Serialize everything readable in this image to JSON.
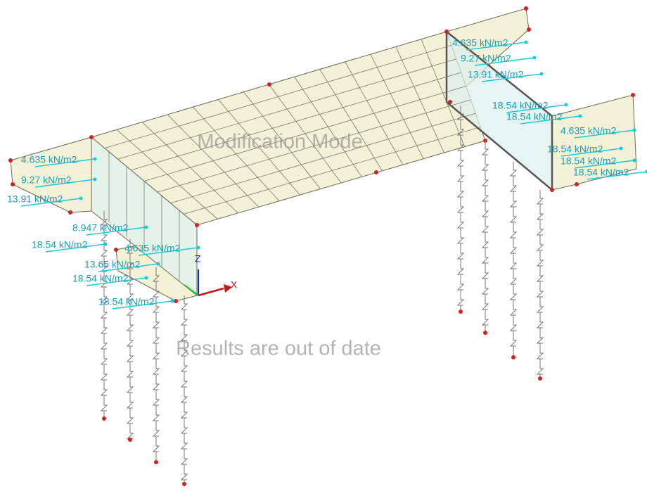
{
  "viewport": {
    "watermarks": [
      "Modification Mode",
      "Results are out of date"
    ],
    "axes": {
      "x": "X",
      "z": "Z"
    },
    "load_labels": [
      "4.635 kN/m2",
      "9.27 kN/m2",
      "13.91 kN/m2",
      "8.947 kN/m2",
      "18.54 kN/m2",
      "4.635 kN/m2",
      "13.65 kN/m2",
      "18.54 kN/m2",
      "18.54 kN/m2",
      "4.635 kN/m2",
      "9.27 kN/m2",
      "13.91 kN/m2",
      "18.54 kN/m2",
      "18.54 kN/m2",
      "4.635 kN/m2",
      "18.54 kN/m2",
      "18.54 kN/m2",
      "18.54 kN/m2"
    ]
  }
}
